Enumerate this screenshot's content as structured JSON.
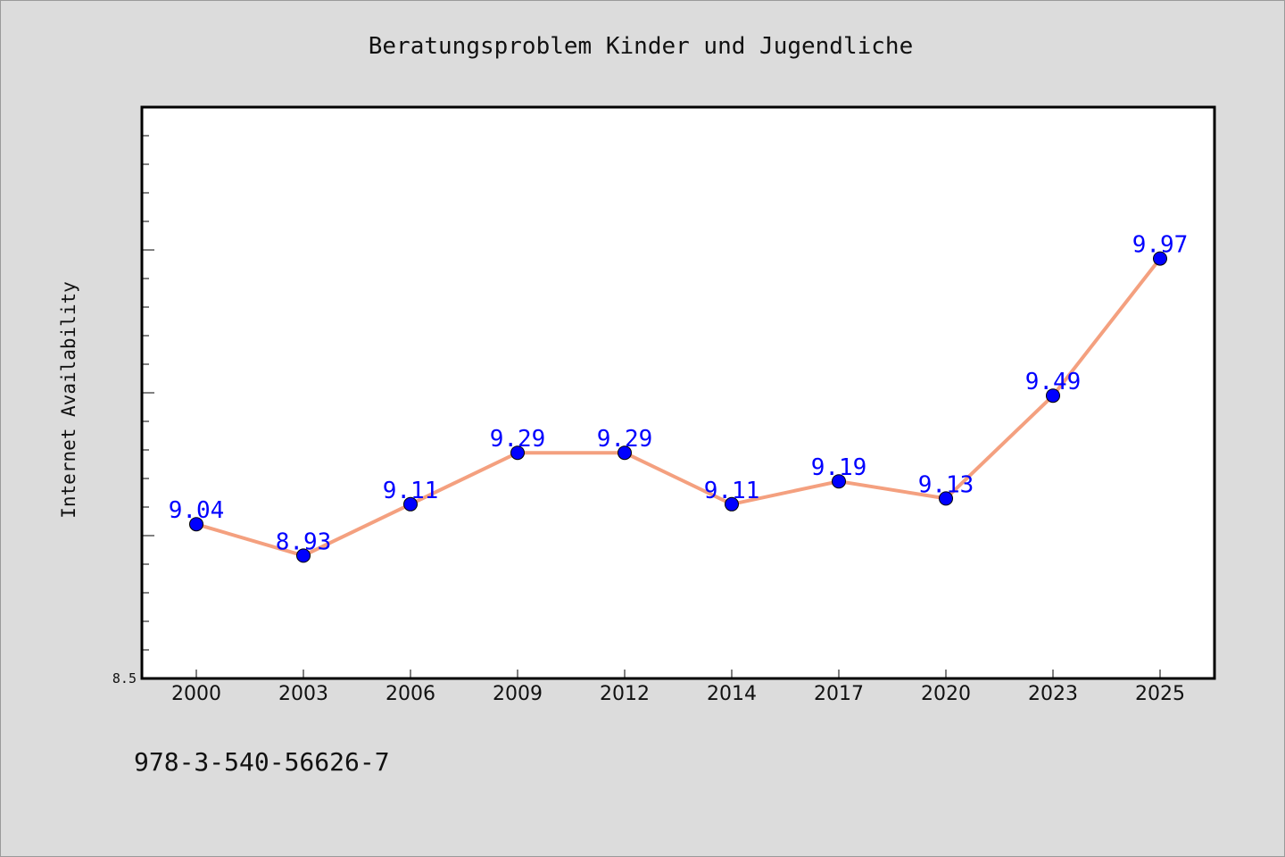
{
  "chart_data": {
    "type": "line",
    "title": "Beratungsproblem Kinder und Jugendliche",
    "ylabel": "Internet Availability",
    "xlabel": "",
    "categories": [
      "2000",
      "2003",
      "2006",
      "2009",
      "2012",
      "2014",
      "2017",
      "2020",
      "2023",
      "2025"
    ],
    "series": [
      {
        "values": [
          9.04,
          8.93,
          9.11,
          9.29,
          9.29,
          9.11,
          9.19,
          9.13,
          9.49,
          9.97
        ]
      }
    ],
    "data_labels": [
      "9.04",
      "8.93",
      "9.11",
      "9.29",
      "9.29",
      "9.11",
      "9.19",
      "9.13",
      "9.49",
      "9.97"
    ],
    "ylim": [
      8.5,
      10.5
    ],
    "y_tick_labels": [
      "8.5"
    ],
    "grid": false,
    "colors": {
      "line": "#f4a07f",
      "marker": "#0000ff",
      "label": "#0000ff"
    }
  },
  "footer": {
    "isbn": "978-3-540-56626-7"
  }
}
